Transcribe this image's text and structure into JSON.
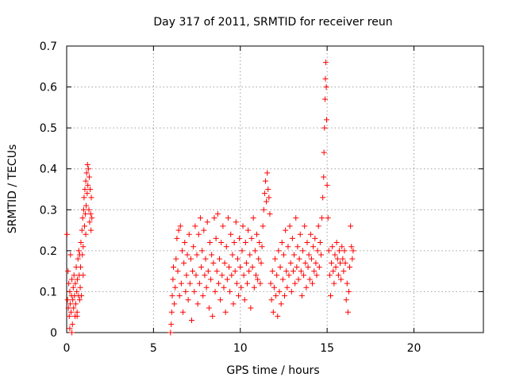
{
  "chart_data": {
    "type": "scatter",
    "title": "Day 317 of 2011, SRMTID for receiver reun",
    "xlabel": "GPS time / hours",
    "ylabel": "SRMTID / TECUs",
    "xlim": [
      0,
      24
    ],
    "ylim": [
      0,
      0.7
    ],
    "xticks": [
      0,
      5,
      10,
      15,
      20
    ],
    "xtick_labels": [
      "0",
      "5",
      "10",
      "15",
      "20"
    ],
    "yticks": [
      0,
      0.1,
      0.2,
      0.3,
      0.4,
      0.5,
      0.6,
      0.7
    ],
    "ytick_labels": [
      "0",
      "0.1",
      "0.2",
      "0.3",
      "0.4",
      "0.5",
      "0.6",
      "0.7"
    ],
    "grid": true,
    "marker": "+",
    "marker_color": "#ff0000",
    "series": [
      {
        "name": "SRMTID",
        "points": [
          [
            0.02,
            0.24
          ],
          [
            0.05,
            0.08
          ],
          [
            0.08,
            0.15
          ],
          [
            0.1,
            0.06
          ],
          [
            0.12,
            0.12
          ],
          [
            0.15,
            0.04
          ],
          [
            0.18,
            0.1
          ],
          [
            0.2,
            0.07
          ],
          [
            0.22,
            0.19
          ],
          [
            0.25,
            0.05
          ],
          [
            0.28,
            0.09
          ],
          [
            0.3,
            0.13
          ],
          [
            0.33,
            0.02
          ],
          [
            0.35,
            0.08
          ],
          [
            0.38,
            0.11
          ],
          [
            0.4,
            0.06
          ],
          [
            0.42,
            0.14
          ],
          [
            0.45,
            0.09
          ],
          [
            0.48,
            0.04
          ],
          [
            0.5,
            0.12
          ],
          [
            0.52,
            0.07
          ],
          [
            0.55,
            0.16
          ],
          [
            0.58,
            0.1
          ],
          [
            0.6,
            0.05
          ],
          [
            0.62,
            0.13
          ],
          [
            0.65,
            0.18
          ],
          [
            0.68,
            0.09
          ],
          [
            0.7,
            0.2
          ],
          [
            0.72,
            0.14
          ],
          [
            0.75,
            0.19
          ],
          [
            0.78,
            0.11
          ],
          [
            0.8,
            0.16
          ],
          [
            0.82,
            0.22
          ],
          [
            0.85,
            0.09
          ],
          [
            0.88,
            0.25
          ],
          [
            0.9,
            0.19
          ],
          [
            0.92,
            0.28
          ],
          [
            0.95,
            0.21
          ],
          [
            0.98,
            0.3
          ],
          [
            1.0,
            0.33
          ],
          [
            1.03,
            0.26
          ],
          [
            1.05,
            0.35
          ],
          [
            1.08,
            0.29
          ],
          [
            1.1,
            0.37
          ],
          [
            1.12,
            0.31
          ],
          [
            1.15,
            0.39
          ],
          [
            1.18,
            0.34
          ],
          [
            1.2,
            0.41
          ],
          [
            1.22,
            0.36
          ],
          [
            1.25,
            0.4
          ],
          [
            1.28,
            0.3
          ],
          [
            1.3,
            0.38
          ],
          [
            1.32,
            0.27
          ],
          [
            1.35,
            0.35
          ],
          [
            1.38,
            0.29
          ],
          [
            1.4,
            0.25
          ],
          [
            1.42,
            0.33
          ],
          [
            1.45,
            0.28
          ],
          [
            0.18,
            0.01
          ],
          [
            0.3,
            0.0
          ],
          [
            0.6,
            0.04
          ],
          [
            0.75,
            0.08
          ],
          [
            0.95,
            0.14
          ],
          [
            1.1,
            0.24
          ],
          [
            5.98,
            0.0
          ],
          [
            6.02,
            0.02
          ],
          [
            6.05,
            0.05
          ],
          [
            6.08,
            0.09
          ],
          [
            6.12,
            0.13
          ],
          [
            6.15,
            0.16
          ],
          [
            6.2,
            0.07
          ],
          [
            6.25,
            0.11
          ],
          [
            6.3,
            0.18
          ],
          [
            6.35,
            0.23
          ],
          [
            6.4,
            0.15
          ],
          [
            6.45,
            0.25
          ],
          [
            6.5,
            0.09
          ],
          [
            6.55,
            0.26
          ],
          [
            6.6,
            0.12
          ],
          [
            6.65,
            0.2
          ],
          [
            6.7,
            0.05
          ],
          [
            6.75,
            0.17
          ],
          [
            6.8,
            0.22
          ],
          [
            6.85,
            0.1
          ],
          [
            6.9,
            0.14
          ],
          [
            6.95,
            0.19
          ],
          [
            7.0,
            0.08
          ],
          [
            7.05,
            0.24
          ],
          [
            7.1,
            0.12
          ],
          [
            7.15,
            0.18
          ],
          [
            7.2,
            0.03
          ],
          [
            7.25,
            0.15
          ],
          [
            7.3,
            0.21
          ],
          [
            7.35,
            0.1
          ],
          [
            7.4,
            0.26
          ],
          [
            7.45,
            0.14
          ],
          [
            7.5,
            0.19
          ],
          [
            7.55,
            0.07
          ],
          [
            7.6,
            0.24
          ],
          [
            7.65,
            0.12
          ],
          [
            7.7,
            0.28
          ],
          [
            7.75,
            0.16
          ],
          [
            7.8,
            0.2
          ],
          [
            7.85,
            0.09
          ],
          [
            7.9,
            0.25
          ],
          [
            7.95,
            0.14
          ],
          [
            8.0,
            0.18
          ],
          [
            8.05,
            0.11
          ],
          [
            8.1,
            0.27
          ],
          [
            8.15,
            0.15
          ],
          [
            8.2,
            0.06
          ],
          [
            8.25,
            0.22
          ],
          [
            8.3,
            0.13
          ],
          [
            8.35,
            0.19
          ],
          [
            8.4,
            0.04
          ],
          [
            8.45,
            0.17
          ],
          [
            8.5,
            0.28
          ],
          [
            8.55,
            0.1
          ],
          [
            8.6,
            0.23
          ],
          [
            8.65,
            0.15
          ],
          [
            8.7,
            0.29
          ],
          [
            8.75,
            0.12
          ],
          [
            8.8,
            0.18
          ],
          [
            8.85,
            0.08
          ],
          [
            8.9,
            0.22
          ],
          [
            8.95,
            0.14
          ],
          [
            9.0,
            0.26
          ],
          [
            9.05,
            0.11
          ],
          [
            9.1,
            0.17
          ],
          [
            9.15,
            0.05
          ],
          [
            9.2,
            0.21
          ],
          [
            9.25,
            0.13
          ],
          [
            9.3,
            0.28
          ],
          [
            9.35,
            0.16
          ],
          [
            9.4,
            0.1
          ],
          [
            9.45,
            0.24
          ],
          [
            9.5,
            0.14
          ],
          [
            9.55,
            0.19
          ],
          [
            9.6,
            0.07
          ],
          [
            9.65,
            0.22
          ],
          [
            9.7,
            0.15
          ],
          [
            9.75,
            0.27
          ],
          [
            9.8,
            0.12
          ],
          [
            9.85,
            0.18
          ],
          [
            9.9,
            0.09
          ],
          [
            9.95,
            0.23
          ],
          [
            10.0,
            0.16
          ],
          [
            10.05,
            0.11
          ],
          [
            10.1,
            0.2
          ],
          [
            10.15,
            0.26
          ],
          [
            10.2,
            0.14
          ],
          [
            10.25,
            0.08
          ],
          [
            10.3,
            0.22
          ],
          [
            10.35,
            0.17
          ],
          [
            10.4,
            0.12
          ],
          [
            10.45,
            0.25
          ],
          [
            10.5,
            0.15
          ],
          [
            10.55,
            0.19
          ],
          [
            10.6,
            0.06
          ],
          [
            10.65,
            0.23
          ],
          [
            10.7,
            0.16
          ],
          [
            10.75,
            0.28
          ],
          [
            10.8,
            0.11
          ],
          [
            10.85,
            0.2
          ],
          [
            10.9,
            0.14
          ],
          [
            10.95,
            0.24
          ],
          [
            11.0,
            0.13
          ],
          [
            11.05,
            0.18
          ],
          [
            11.1,
            0.22
          ],
          [
            11.15,
            0.12
          ],
          [
            11.2,
            0.17
          ],
          [
            11.25,
            0.21
          ],
          [
            11.3,
            0.26
          ],
          [
            11.35,
            0.3
          ],
          [
            11.4,
            0.34
          ],
          [
            11.45,
            0.37
          ],
          [
            11.5,
            0.32
          ],
          [
            11.55,
            0.39
          ],
          [
            11.6,
            0.35
          ],
          [
            11.65,
            0.33
          ],
          [
            11.7,
            0.29
          ],
          [
            11.75,
            0.12
          ],
          [
            11.8,
            0.08
          ],
          [
            11.85,
            0.15
          ],
          [
            11.9,
            0.05
          ],
          [
            11.95,
            0.11
          ],
          [
            12.0,
            0.18
          ],
          [
            12.05,
            0.09
          ],
          [
            12.1,
            0.14
          ],
          [
            12.15,
            0.04
          ],
          [
            12.2,
            0.2
          ],
          [
            12.25,
            0.1
          ],
          [
            12.3,
            0.16
          ],
          [
            12.35,
            0.07
          ],
          [
            12.4,
            0.22
          ],
          [
            12.45,
            0.13
          ],
          [
            12.5,
            0.19
          ],
          [
            12.55,
            0.09
          ],
          [
            12.6,
            0.25
          ],
          [
            12.65,
            0.15
          ],
          [
            12.7,
            0.11
          ],
          [
            12.75,
            0.21
          ],
          [
            12.8,
            0.14
          ],
          [
            12.85,
            0.26
          ],
          [
            12.9,
            0.17
          ],
          [
            12.95,
            0.1
          ],
          [
            13.0,
            0.23
          ],
          [
            13.05,
            0.15
          ],
          [
            13.1,
            0.19
          ],
          [
            13.15,
            0.12
          ],
          [
            13.2,
            0.28
          ],
          [
            13.25,
            0.16
          ],
          [
            13.3,
            0.21
          ],
          [
            13.35,
            0.13
          ],
          [
            13.4,
            0.18
          ],
          [
            13.45,
            0.24
          ],
          [
            13.5,
            0.15
          ],
          [
            13.55,
            0.09
          ],
          [
            13.6,
            0.2
          ],
          [
            13.65,
            0.14
          ],
          [
            13.7,
            0.26
          ],
          [
            13.75,
            0.17
          ],
          [
            13.8,
            0.11
          ],
          [
            13.85,
            0.22
          ],
          [
            13.9,
            0.16
          ],
          [
            13.95,
            0.19
          ],
          [
            14.0,
            0.13
          ],
          [
            14.05,
            0.24
          ],
          [
            14.1,
            0.18
          ],
          [
            14.15,
            0.12
          ],
          [
            14.2,
            0.21
          ],
          [
            14.25,
            0.15
          ],
          [
            14.3,
            0.23
          ],
          [
            14.35,
            0.17
          ],
          [
            14.4,
            0.14
          ],
          [
            14.45,
            0.2
          ],
          [
            14.5,
            0.26
          ],
          [
            14.55,
            0.16
          ],
          [
            14.6,
            0.22
          ],
          [
            14.65,
            0.19
          ],
          [
            14.7,
            0.28
          ],
          [
            14.75,
            0.33
          ],
          [
            14.8,
            0.38
          ],
          [
            14.82,
            0.44
          ],
          [
            14.85,
            0.5
          ],
          [
            14.88,
            0.57
          ],
          [
            14.9,
            0.62
          ],
          [
            14.92,
            0.66
          ],
          [
            14.95,
            0.6
          ],
          [
            14.97,
            0.52
          ],
          [
            15.0,
            0.36
          ],
          [
            15.05,
            0.28
          ],
          [
            15.1,
            0.2
          ],
          [
            15.15,
            0.14
          ],
          [
            15.2,
            0.09
          ],
          [
            15.25,
            0.17
          ],
          [
            15.3,
            0.21
          ],
          [
            15.35,
            0.15
          ],
          [
            15.4,
            0.12
          ],
          [
            15.45,
            0.19
          ],
          [
            15.5,
            0.16
          ],
          [
            15.55,
            0.22
          ],
          [
            15.6,
            0.18
          ],
          [
            15.65,
            0.14
          ],
          [
            15.7,
            0.2
          ],
          [
            15.75,
            0.17
          ],
          [
            15.8,
            0.13
          ],
          [
            15.85,
            0.21
          ],
          [
            15.9,
            0.18
          ],
          [
            15.95,
            0.15
          ],
          [
            16.0,
            0.2
          ],
          [
            16.05,
            0.17
          ],
          [
            16.1,
            0.08
          ],
          [
            16.15,
            0.12
          ],
          [
            16.2,
            0.05
          ],
          [
            16.25,
            0.1
          ],
          [
            16.3,
            0.16
          ],
          [
            16.35,
            0.26
          ],
          [
            16.4,
            0.21
          ],
          [
            16.45,
            0.18
          ],
          [
            16.5,
            0.2
          ]
        ]
      }
    ]
  }
}
